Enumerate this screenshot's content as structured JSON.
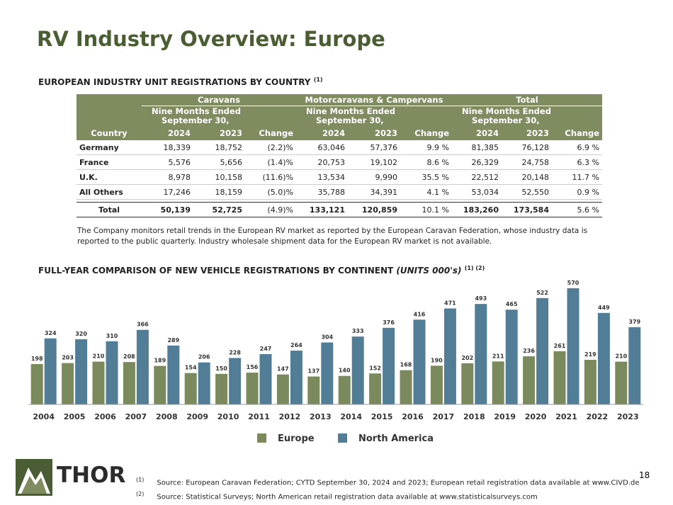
{
  "title": "RV Industry Overview: Europe",
  "section1": {
    "heading": "EUROPEAN INDUSTRY UNIT REGISTRATIONS BY COUNTRY",
    "note": "(1)"
  },
  "table": {
    "groups": [
      {
        "name": "Caravans",
        "period": [
          "Nine Months Ended",
          "September 30,"
        ]
      },
      {
        "name": "Motorcaravans & Campervans",
        "period": [
          "Nine Months Ended",
          "September 30,"
        ]
      },
      {
        "name": "Total",
        "period": [
          "Nine Months Ended",
          "September 30,"
        ]
      }
    ],
    "columns": [
      "Country",
      "2024",
      "2023",
      "Change",
      "2024",
      "2023",
      "Change",
      "2024",
      "2023",
      "Change"
    ],
    "rows": [
      [
        "Germany",
        "18,339",
        "18,752",
        "(2.2)%",
        "63,046",
        "57,376",
        "9.9 %",
        "81,385",
        "76,128",
        "6.9 %"
      ],
      [
        "France",
        "5,576",
        "5,656",
        "(1.4)%",
        "20,753",
        "19,102",
        "8.6 %",
        "26,329",
        "24,758",
        "6.3 %"
      ],
      [
        "U.K.",
        "8,978",
        "10,158",
        "(11.6)%",
        "13,534",
        "9,990",
        "35.5 %",
        "22,512",
        "20,148",
        "11.7 %"
      ],
      [
        "All Others",
        "17,246",
        "18,159",
        "(5.0)%",
        "35,788",
        "34,391",
        "4.1 %",
        "53,034",
        "52,550",
        "0.9 %"
      ],
      [
        "Total",
        "50,139",
        "52,725",
        "(4.9)%",
        "133,121",
        "120,859",
        "10.1 %",
        "183,260",
        "173,584",
        "5.6 %"
      ]
    ]
  },
  "paragraph": "The Company monitors retail trends in the European RV market as reported by the European Caravan Federation, whose industry data is reported to the public quarterly. Industry wholesale shipment data for the European RV market is not available.",
  "chart_data": {
    "type": "bar",
    "title": "FULL-YEAR COMPARISON OF NEW VEHICLE REGISTRATIONS BY CONTINENT",
    "title_units": "(UNITS 000's)",
    "title_note": "(1) (2)",
    "categories": [
      "2004",
      "2005",
      "2006",
      "2007",
      "2008",
      "2009",
      "2010",
      "2011",
      "2012",
      "2013",
      "2014",
      "2015",
      "2016",
      "2017",
      "2018",
      "2019",
      "2020",
      "2021",
      "2022",
      "2023"
    ],
    "series": [
      {
        "name": "Europe",
        "color": "#7b8a5c",
        "values": [
          198,
          203,
          210,
          208,
          189,
          154,
          150,
          156,
          147,
          137,
          140,
          152,
          168,
          190,
          202,
          211,
          236,
          261,
          219,
          210
        ]
      },
      {
        "name": "North America",
        "color": "#527d97",
        "values": [
          324,
          320,
          310,
          366,
          289,
          206,
          228,
          247,
          264,
          304,
          333,
          376,
          416,
          471,
          493,
          465,
          522,
          570,
          449,
          379
        ]
      }
    ],
    "legend": "bottom"
  },
  "logo": "THOR",
  "footnotes": [
    {
      "marker": "(1)",
      "text": "Source: European Caravan Federation; CYTD September 30, 2024 and 2023; European retail registration data available at www.CIVD.de"
    },
    {
      "marker": "(2)",
      "text": "Source: Statistical Surveys; North American retail registration data available at www.statisticalsurveys.com"
    }
  ],
  "page_number": "18"
}
